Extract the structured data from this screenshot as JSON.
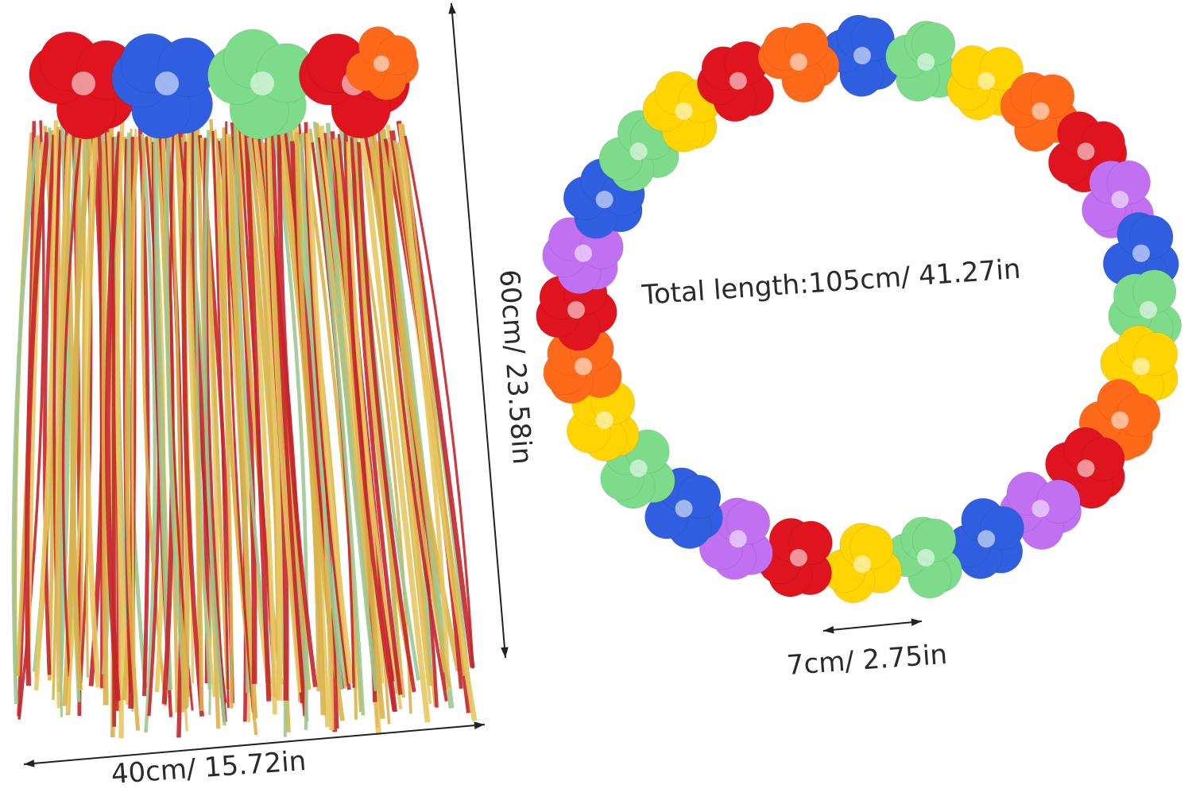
{
  "product": {
    "skirt": {
      "width_label": "40cm/ 15.72in",
      "height_label": "60cm/ 23.58in"
    },
    "lei": {
      "total_length_label": "Total length:105cm/ 41.27in",
      "flower_size_label": "7cm/ 2.75in"
    }
  },
  "colors": {
    "red": "#e0141e",
    "blue": "#2f5fe0",
    "green": "#7ddc8a",
    "yellow": "#ffd400",
    "orange": "#ff6a1a",
    "purple": "#c070f0",
    "straw_gold": "#d9b24a",
    "straw_red": "#c8242a",
    "straw_green": "#9cc890",
    "line": "#222222"
  }
}
